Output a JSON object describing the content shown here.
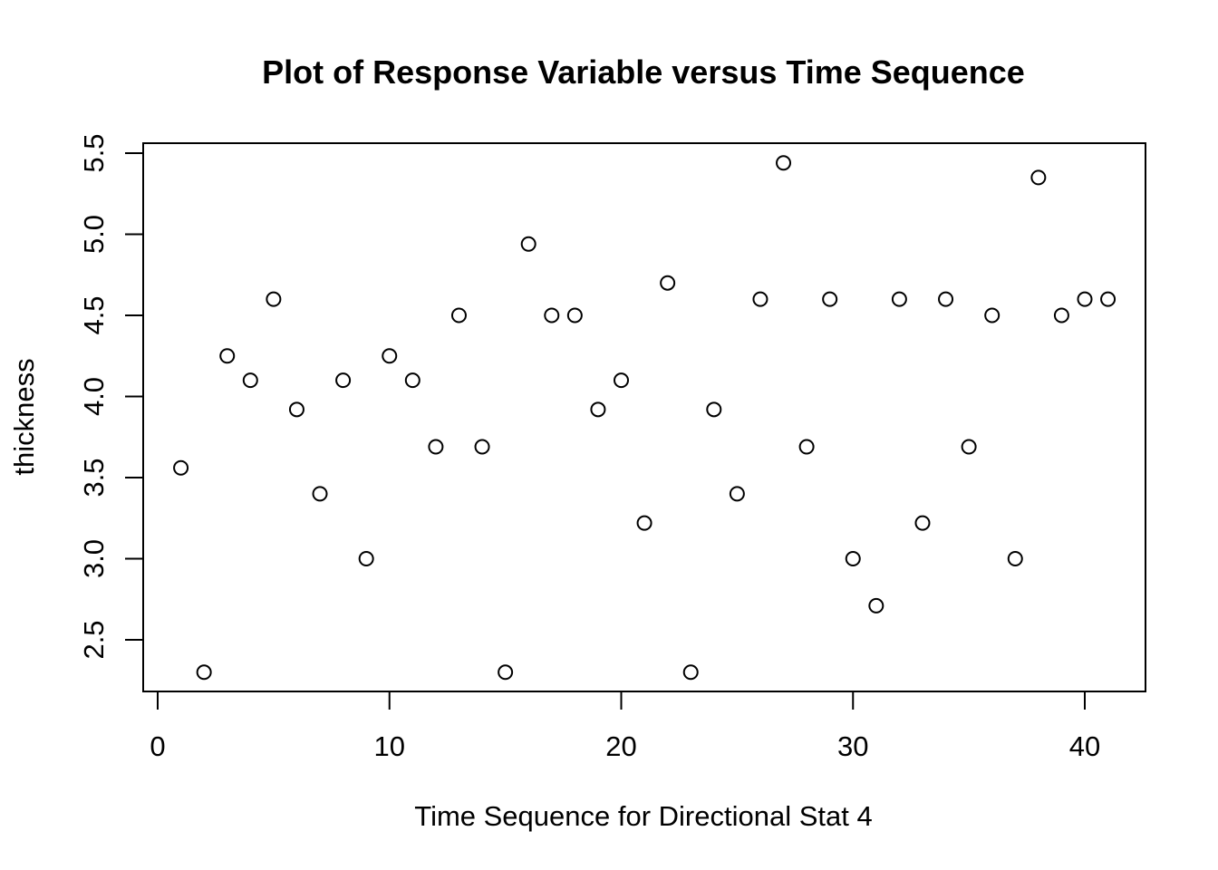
{
  "chart_data": {
    "type": "scatter",
    "title": "Plot of Response Variable versus Time Sequence",
    "xlabel": "Time Sequence for Directional Stat 4",
    "ylabel": "thickness",
    "xlim": [
      0,
      41
    ],
    "ylim": [
      2.3,
      5.5
    ],
    "xticks": [
      "0",
      "10",
      "20",
      "30",
      "40"
    ],
    "yticks": [
      "2.5",
      "3.0",
      "3.5",
      "4.0",
      "4.5",
      "5.0",
      "5.5"
    ],
    "grid": false,
    "marker": "open-circle",
    "colors": {
      "points": "#000000",
      "axes": "#000000",
      "background": "#ffffff"
    },
    "x": [
      1,
      2,
      3,
      4,
      5,
      6,
      7,
      8,
      9,
      10,
      11,
      12,
      13,
      14,
      15,
      16,
      17,
      18,
      19,
      20,
      21,
      22,
      23,
      24,
      25,
      26,
      27,
      28,
      29,
      30,
      31,
      32,
      33,
      34,
      35,
      36,
      37,
      38,
      39,
      40,
      41
    ],
    "y": [
      3.56,
      2.3,
      4.25,
      4.1,
      4.6,
      3.92,
      3.4,
      4.1,
      3.0,
      4.25,
      4.1,
      3.69,
      4.5,
      3.69,
      2.3,
      4.94,
      4.5,
      4.5,
      3.92,
      4.1,
      3.22,
      4.7,
      2.3,
      3.92,
      3.4,
      4.6,
      5.44,
      3.69,
      4.6,
      3.0,
      2.71,
      4.6,
      3.22,
      4.6,
      3.69,
      4.5,
      3.0,
      5.35,
      4.5,
      4.6,
      4.6
    ]
  }
}
